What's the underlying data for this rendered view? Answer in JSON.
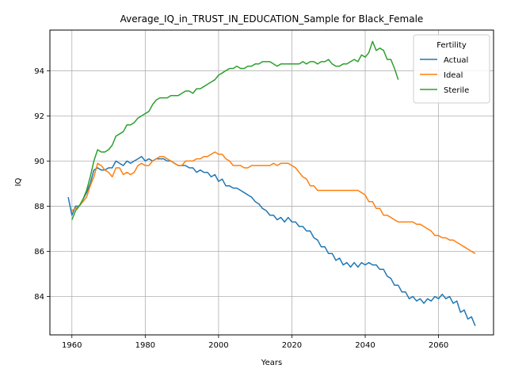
{
  "chart_data": {
    "type": "line",
    "title": "Average_IQ_in_TRUST_IN_EDUCATION_Sample for Black_Female",
    "xlabel": "Years",
    "ylabel": "IQ",
    "xlim": [
      1954,
      2075
    ],
    "ylim": [
      82.3,
      95.8
    ],
    "xticks": [
      1960,
      1980,
      2000,
      2020,
      2040,
      2060
    ],
    "yticks": [
      84,
      86,
      88,
      90,
      92,
      94
    ],
    "grid": true,
    "legend": {
      "title": "Fertility",
      "placement": "top-right"
    },
    "series": [
      {
        "name": "Actual",
        "color": "#1f77b4",
        "x": [
          1959,
          1960,
          1961,
          1962,
          1963,
          1964,
          1965,
          1966,
          1967,
          1968,
          1969,
          1970,
          1971,
          1972,
          1973,
          1974,
          1975,
          1976,
          1977,
          1978,
          1979,
          1980,
          1981,
          1982,
          1983,
          1984,
          1985,
          1986,
          1987,
          1988,
          1989,
          1990,
          1991,
          1992,
          1993,
          1994,
          1995,
          1996,
          1997,
          1998,
          1999,
          2000,
          2001,
          2002,
          2003,
          2004,
          2005,
          2006,
          2007,
          2008,
          2009,
          2010,
          2011,
          2012,
          2013,
          2014,
          2015,
          2016,
          2017,
          2018,
          2019,
          2020,
          2021,
          2022,
          2023,
          2024,
          2025,
          2026,
          2027,
          2028,
          2029,
          2030,
          2031,
          2032,
          2033,
          2034,
          2035,
          2036,
          2037,
          2038,
          2039,
          2040,
          2041,
          2042,
          2043,
          2044,
          2045,
          2046,
          2047,
          2048,
          2049,
          2050,
          2051,
          2052,
          2053,
          2054,
          2055,
          2056,
          2057,
          2058,
          2059,
          2060,
          2061,
          2062,
          2063,
          2064,
          2065,
          2066,
          2067,
          2068,
          2069,
          2070
        ],
        "y": [
          88.4,
          87.6,
          88.0,
          88.0,
          88.3,
          88.6,
          89.0,
          89.6,
          89.7,
          89.6,
          89.6,
          89.7,
          89.7,
          90.0,
          89.9,
          89.8,
          90.0,
          89.9,
          90.0,
          90.1,
          90.2,
          90.0,
          90.1,
          90.0,
          90.1,
          90.1,
          90.1,
          90.0,
          90.0,
          89.9,
          89.8,
          89.8,
          89.8,
          89.7,
          89.7,
          89.5,
          89.6,
          89.5,
          89.5,
          89.3,
          89.4,
          89.1,
          89.2,
          88.9,
          88.9,
          88.8,
          88.8,
          88.7,
          88.6,
          88.5,
          88.4,
          88.2,
          88.1,
          87.9,
          87.8,
          87.6,
          87.6,
          87.4,
          87.5,
          87.3,
          87.5,
          87.3,
          87.3,
          87.1,
          87.1,
          86.9,
          86.9,
          86.6,
          86.5,
          86.2,
          86.2,
          85.9,
          85.9,
          85.6,
          85.7,
          85.4,
          85.5,
          85.3,
          85.5,
          85.3,
          85.5,
          85.4,
          85.5,
          85.4,
          85.4,
          85.2,
          85.2,
          84.9,
          84.8,
          84.5,
          84.5,
          84.2,
          84.2,
          83.9,
          84.0,
          83.8,
          83.9,
          83.7,
          83.9,
          83.8,
          84.0,
          83.9,
          84.1,
          83.9,
          84.0,
          83.7,
          83.8,
          83.3,
          83.4,
          83.0,
          83.1,
          82.7
        ]
      },
      {
        "name": "Ideal",
        "color": "#ff7f0e",
        "x": [
          1960,
          1961,
          1962,
          1963,
          1964,
          1965,
          1966,
          1967,
          1968,
          1969,
          1970,
          1971,
          1972,
          1973,
          1974,
          1975,
          1976,
          1977,
          1978,
          1979,
          1980,
          1981,
          1982,
          1983,
          1984,
          1985,
          1986,
          1987,
          1988,
          1989,
          1990,
          1991,
          1992,
          1993,
          1994,
          1995,
          1996,
          1997,
          1998,
          1999,
          2000,
          2001,
          2002,
          2003,
          2004,
          2005,
          2006,
          2007,
          2008,
          2009,
          2010,
          2011,
          2012,
          2013,
          2014,
          2015,
          2016,
          2017,
          2018,
          2019,
          2020,
          2021,
          2022,
          2023,
          2024,
          2025,
          2026,
          2027,
          2028,
          2029,
          2030,
          2031,
          2032,
          2033,
          2034,
          2035,
          2036,
          2037,
          2038,
          2039,
          2040,
          2041,
          2042,
          2043,
          2044,
          2045,
          2046,
          2047,
          2048,
          2049,
          2050,
          2051,
          2052,
          2053,
          2054,
          2055,
          2056,
          2057,
          2058,
          2059,
          2060,
          2061,
          2062,
          2063,
          2064,
          2065,
          2066,
          2067,
          2068,
          2069,
          2070
        ],
        "y": [
          87.8,
          87.9,
          88.0,
          88.2,
          88.4,
          88.9,
          89.3,
          89.9,
          89.8,
          89.6,
          89.5,
          89.3,
          89.7,
          89.7,
          89.4,
          89.5,
          89.4,
          89.5,
          89.8,
          89.9,
          89.8,
          89.8,
          90.0,
          90.1,
          90.2,
          90.2,
          90.1,
          90.0,
          89.9,
          89.8,
          89.8,
          90.0,
          90.0,
          90.0,
          90.1,
          90.1,
          90.2,
          90.2,
          90.3,
          90.4,
          90.3,
          90.3,
          90.1,
          90.0,
          89.8,
          89.8,
          89.8,
          89.7,
          89.7,
          89.8,
          89.8,
          89.8,
          89.8,
          89.8,
          89.8,
          89.9,
          89.8,
          89.9,
          89.9,
          89.9,
          89.8,
          89.7,
          89.5,
          89.3,
          89.2,
          88.9,
          88.9,
          88.7,
          88.7,
          88.7,
          88.7,
          88.7,
          88.7,
          88.7,
          88.7,
          88.7,
          88.7,
          88.7,
          88.7,
          88.6,
          88.5,
          88.2,
          88.2,
          87.9,
          87.9,
          87.6,
          87.6,
          87.5,
          87.4,
          87.3,
          87.3,
          87.3,
          87.3,
          87.3,
          87.2,
          87.2,
          87.1,
          87.0,
          86.9,
          86.7,
          86.7,
          86.6,
          86.6,
          86.5,
          86.5,
          86.4,
          86.3,
          86.2,
          86.1,
          86.0,
          85.9
        ]
      },
      {
        "name": "Sterile",
        "color": "#2ca02c",
        "x": [
          1960,
          1961,
          1962,
          1963,
          1964,
          1965,
          1966,
          1967,
          1968,
          1969,
          1970,
          1971,
          1972,
          1973,
          1974,
          1975,
          1976,
          1977,
          1978,
          1979,
          1980,
          1981,
          1982,
          1983,
          1984,
          1985,
          1986,
          1987,
          1988,
          1989,
          1990,
          1991,
          1992,
          1993,
          1994,
          1995,
          1996,
          1997,
          1998,
          1999,
          2000,
          2001,
          2002,
          2003,
          2004,
          2005,
          2006,
          2007,
          2008,
          2009,
          2010,
          2011,
          2012,
          2013,
          2014,
          2015,
          2016,
          2017,
          2018,
          2019,
          2020,
          2021,
          2022,
          2023,
          2024,
          2025,
          2026,
          2027,
          2028,
          2029,
          2030,
          2031,
          2032,
          2033,
          2034,
          2035,
          2036,
          2037,
          2038,
          2039,
          2040,
          2041,
          2042,
          2043,
          2044,
          2045,
          2046,
          2047,
          2048,
          2049
        ],
        "y": [
          87.4,
          87.8,
          88.0,
          88.3,
          88.7,
          89.3,
          90.0,
          90.5,
          90.4,
          90.4,
          90.5,
          90.7,
          91.1,
          91.2,
          91.3,
          91.6,
          91.6,
          91.7,
          91.9,
          92.0,
          92.1,
          92.2,
          92.5,
          92.7,
          92.8,
          92.8,
          92.8,
          92.9,
          92.9,
          92.9,
          93.0,
          93.1,
          93.1,
          93.0,
          93.2,
          93.2,
          93.3,
          93.4,
          93.5,
          93.6,
          93.8,
          93.9,
          94.0,
          94.1,
          94.1,
          94.2,
          94.1,
          94.1,
          94.2,
          94.2,
          94.3,
          94.3,
          94.4,
          94.4,
          94.4,
          94.3,
          94.2,
          94.3,
          94.3,
          94.3,
          94.3,
          94.3,
          94.3,
          94.4,
          94.3,
          94.4,
          94.4,
          94.3,
          94.4,
          94.4,
          94.5,
          94.3,
          94.2,
          94.2,
          94.3,
          94.3,
          94.4,
          94.5,
          94.4,
          94.7,
          94.6,
          94.8,
          95.3,
          94.9,
          95.0,
          94.9,
          94.5,
          94.5,
          94.1,
          93.6
        ]
      }
    ]
  }
}
